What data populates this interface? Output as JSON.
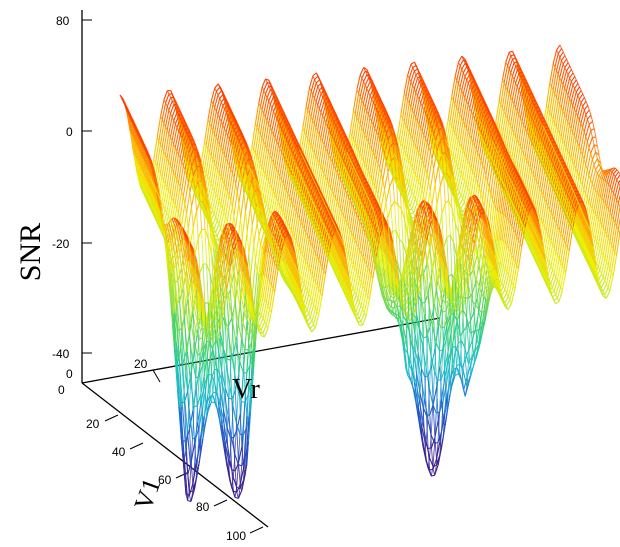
{
  "chart_data": {
    "type": "surface",
    "zlabel": "SNR",
    "xlabel": "Vr",
    "ylabel": "V1",
    "z_ticks": [
      "80",
      "0",
      "-20",
      "-40"
    ],
    "x_ticks": [
      "0",
      "20"
    ],
    "y_ticks": [
      "0",
      "20",
      "40",
      "60",
      "80",
      "100"
    ],
    "zlim": [
      -40,
      80
    ],
    "xlim": [
      0,
      100
    ],
    "ylim": [
      0,
      100
    ],
    "colormap": [
      "#3b1f8f",
      "#1f60d0",
      "#20c0d0",
      "#30d070",
      "#a0e040",
      "#f0f000",
      "#ffa000",
      "#ff2000"
    ],
    "surface": {
      "description_free": true,
      "ridge_count": 9,
      "deep_trough_count": 2,
      "ridge_peak": 2,
      "plateau": -10,
      "trough_min": -70
    }
  }
}
